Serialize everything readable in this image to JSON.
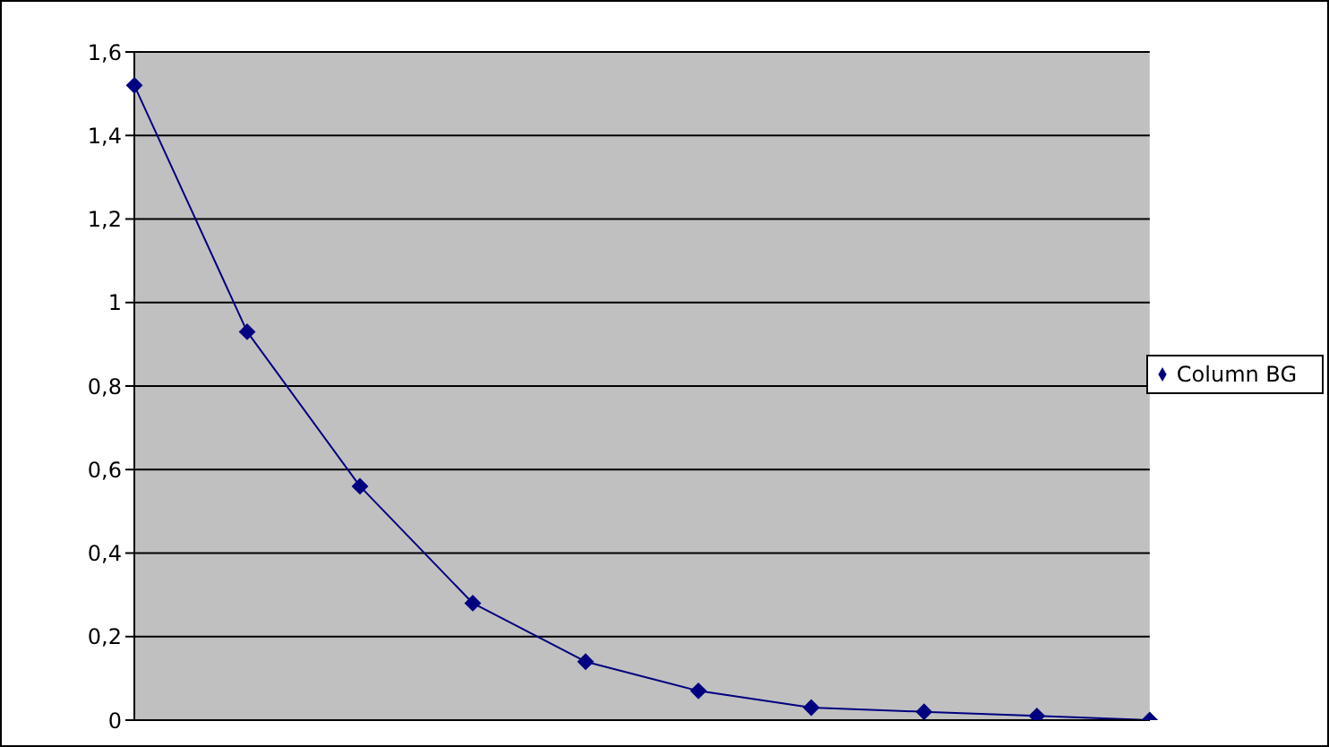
{
  "chart_data": {
    "type": "line",
    "categories": [
      null,
      null,
      null,
      null,
      null,
      null,
      null,
      null,
      null,
      null
    ],
    "series": [
      {
        "name": "Column BG",
        "color": "#000080",
        "values": [
          1.52,
          0.93,
          0.56,
          0.28,
          0.14,
          0.07,
          0.03,
          0.02,
          0.01,
          0
        ]
      }
    ],
    "ylim": [
      0,
      1.6
    ],
    "yticks": [
      0,
      {
        "value": 0.2,
        "label": "0,2"
      },
      {
        "value": 0.4,
        "label": "0,4"
      },
      {
        "value": 0.6,
        "label": "0,6"
      },
      {
        "value": 0.8,
        "label": "0,8"
      },
      1,
      {
        "value": 1.2,
        "label": "1,2"
      },
      {
        "value": 1.4,
        "label": "1,4"
      },
      {
        "value": 1.6,
        "label": "1,6"
      }
    ],
    "grid": "y",
    "legend": "right",
    "marker": "diamond",
    "tick_labels": "y"
  }
}
